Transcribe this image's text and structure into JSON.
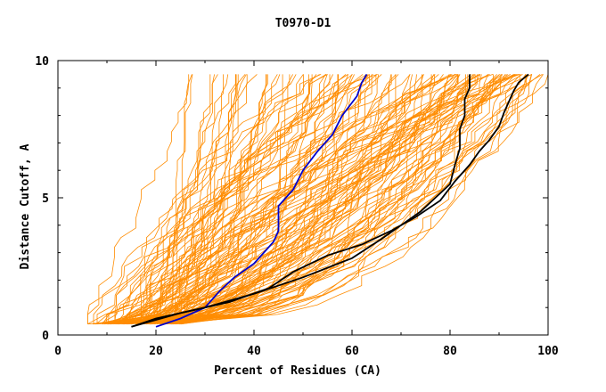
{
  "chart_data": {
    "type": "line",
    "title": "T0970-D1",
    "xlabel": "Percent of Residues (CA)",
    "ylabel": "Distance Cutoff, A",
    "xlim": [
      0,
      100
    ],
    "ylim": [
      0,
      10
    ],
    "x_ticks": [
      0,
      20,
      40,
      60,
      80,
      100
    ],
    "y_ticks": [
      0,
      5,
      10
    ],
    "grid": false,
    "legend": "none",
    "colors": {
      "background_series": "#ff8c00",
      "highlight_blue": "#0000cc",
      "highlight_black": "#000000",
      "axis": "#000000"
    },
    "series": [
      {
        "color": "#0000cc",
        "x": [
          20,
          25,
          30,
          33,
          36,
          40,
          42,
          44,
          45,
          45,
          48,
          50,
          53,
          56,
          58,
          61,
          62,
          63
        ],
        "y": [
          0.3,
          0.6,
          1.0,
          1.6,
          2.1,
          2.6,
          3.0,
          3.4,
          3.8,
          4.7,
          5.3,
          6.0,
          6.7,
          7.3,
          8.0,
          8.7,
          9.2,
          9.5
        ]
      },
      {
        "color": "#000000",
        "x": [
          15,
          20,
          30,
          40,
          50,
          60,
          66,
          70,
          74,
          77,
          80,
          81,
          82,
          82,
          83,
          83,
          84,
          84
        ],
        "y": [
          0.3,
          0.6,
          1.0,
          1.5,
          2.1,
          2.8,
          3.5,
          4.0,
          4.5,
          5.0,
          5.5,
          6.2,
          6.8,
          7.5,
          8.0,
          8.6,
          9.0,
          9.5
        ]
      },
      {
        "color": "#000000",
        "x": [
          15,
          25,
          35,
          43,
          48,
          55,
          62,
          68,
          73,
          78,
          81,
          84,
          86,
          88,
          90,
          91,
          92,
          93,
          94,
          96
        ],
        "y": [
          0.3,
          0.8,
          1.2,
          1.7,
          2.3,
          2.9,
          3.3,
          3.8,
          4.3,
          4.9,
          5.6,
          6.2,
          6.7,
          7.1,
          7.6,
          8.1,
          8.5,
          8.9,
          9.2,
          9.5
        ]
      }
    ]
  }
}
